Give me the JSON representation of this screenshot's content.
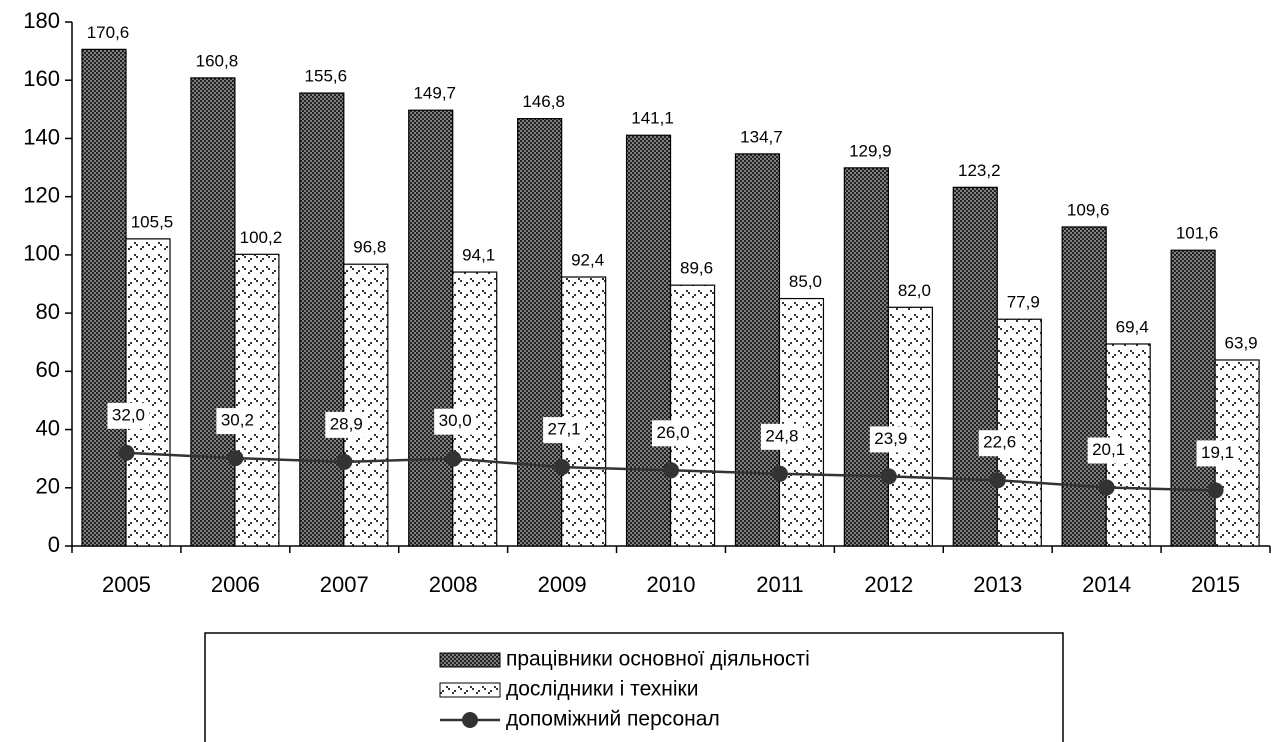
{
  "chart_data": {
    "type": "bar",
    "categories": [
      "2005",
      "2006",
      "2007",
      "2008",
      "2009",
      "2010",
      "2011",
      "2012",
      "2013",
      "2014",
      "2015"
    ],
    "series": [
      {
        "name": "працівники основної діяльності",
        "color": "#808080",
        "type": "bar",
        "values": [
          170.6,
          160.8,
          155.6,
          149.7,
          146.8,
          141.1,
          134.7,
          129.9,
          123.2,
          109.6,
          101.6
        ],
        "value_labels": [
          "170,6",
          "160,8",
          "155,6",
          "149,7",
          "146,8",
          "141,1",
          "134,7",
          "129,9",
          "123,2",
          "109,6",
          "101,6"
        ]
      },
      {
        "name": "дослідники і техніки",
        "color": "#ffffff",
        "type": "bar",
        "values": [
          105.5,
          100.2,
          96.8,
          94.1,
          92.4,
          89.6,
          85.0,
          82.0,
          77.9,
          69.4,
          63.9
        ],
        "value_labels": [
          "105,5",
          "100,2",
          "96,8",
          "94,1",
          "92,4",
          "89,6",
          "85,0",
          "82,0",
          "77,9",
          "69,4",
          "63,9"
        ]
      },
      {
        "name": "допоміжний персонал",
        "color": "#333333",
        "type": "line",
        "values": [
          32.0,
          30.2,
          28.9,
          30.0,
          27.1,
          26.0,
          24.8,
          23.9,
          22.6,
          20.1,
          19.1
        ],
        "value_labels": [
          "32,0",
          "30,2",
          "28,9",
          "30,0",
          "27,1",
          "26,0",
          "24,8",
          "23,9",
          "22,6",
          "20,1",
          "19,1"
        ]
      }
    ],
    "ylim": [
      0,
      180
    ],
    "yticks": [
      0,
      20,
      40,
      60,
      80,
      100,
      120,
      140,
      160,
      180
    ],
    "grid": false,
    "legend": "bottom"
  }
}
